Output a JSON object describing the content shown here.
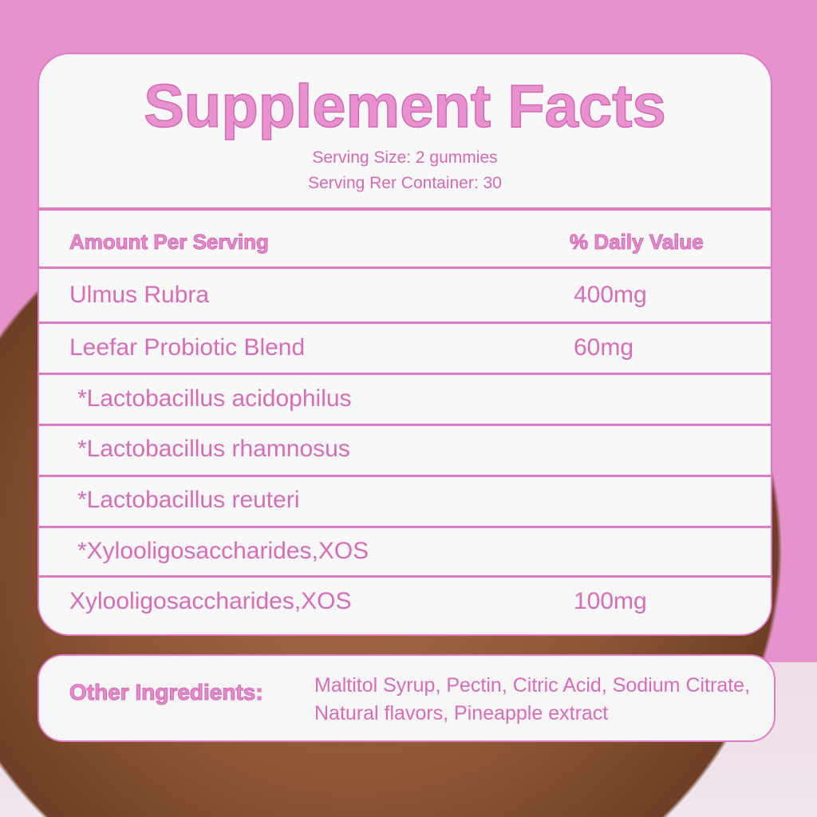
{
  "title": "Supplement Facts",
  "serving_size": "Serving Size: 2 gummies",
  "servings_per_container": "Serving Rer Container: 30",
  "header": {
    "amount": "Amount Per Serving",
    "daily_value": "% Daily Value"
  },
  "rows": [
    {
      "name": "Ulmus Rubra",
      "value": "400mg"
    },
    {
      "name": "Leefar Probiotic Blend",
      "value": "60mg"
    },
    {
      "name": "*Lactobacillus acidophilus",
      "value": ""
    },
    {
      "name": "*Lactobacillus rhamnosus",
      "value": ""
    },
    {
      "name": "*Lactobacillus reuteri",
      "value": ""
    },
    {
      "name": "*Xylooligosaccharides,XOS",
      "value": ""
    },
    {
      "name": "Xylooligosaccharides,XOS",
      "value": "100mg"
    }
  ],
  "other_ingredients": {
    "label": "Other Ingredients:",
    "text": "Maltitol Syrup, Pectin, Citric Acid, Sodium Citrate, Natural flavors, Pineapple extract"
  },
  "colors": {
    "accent": "#e07ac2",
    "text": "#d96cb8",
    "background": "#e592cd"
  }
}
